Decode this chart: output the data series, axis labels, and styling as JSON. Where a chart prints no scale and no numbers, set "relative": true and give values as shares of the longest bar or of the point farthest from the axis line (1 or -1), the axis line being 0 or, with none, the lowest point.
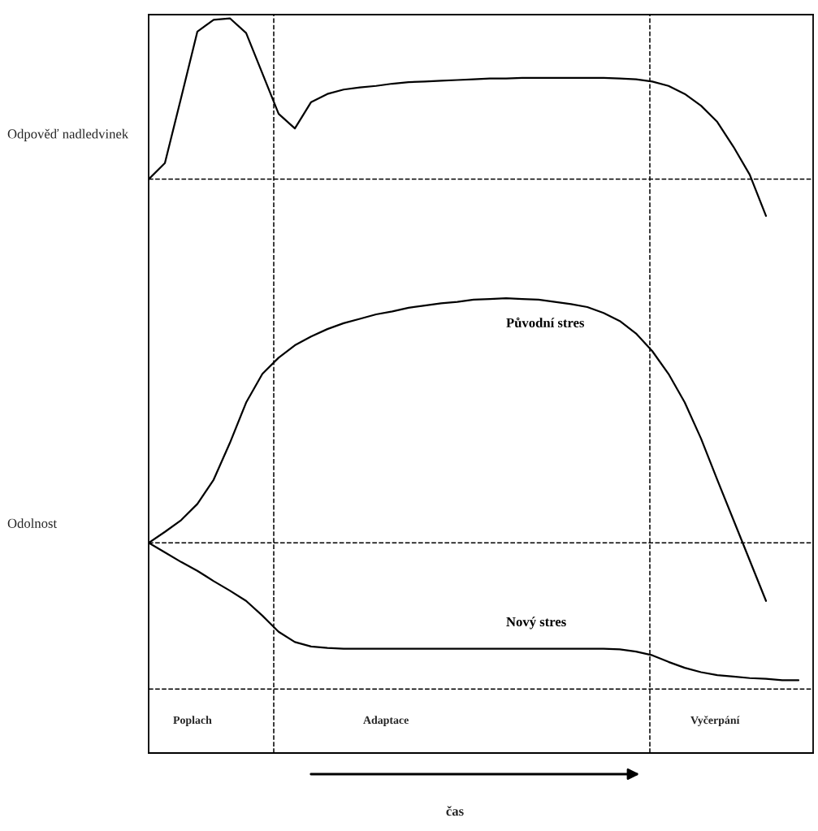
{
  "chart_data": {
    "type": "line",
    "relative": true,
    "xlabel": "čas",
    "categories": [
      null,
      null,
      null,
      null,
      null,
      null,
      null,
      null,
      null,
      null,
      null,
      null,
      null,
      null,
      null,
      null,
      null,
      null,
      null,
      null,
      null,
      null,
      null,
      null,
      null,
      null,
      null,
      null,
      null,
      null,
      null,
      null,
      null,
      null,
      null,
      null,
      null,
      null,
      null,
      null,
      null
    ],
    "series": [
      {
        "color": "#000000",
        "values": [
          0.781,
          0.803,
          0.892,
          0.982,
          0.998,
          1.0,
          0.98,
          0.925,
          0.87,
          0.85,
          0.886,
          0.897,
          0.903,
          0.906,
          0.908,
          0.911,
          0.913,
          0.914,
          0.915,
          0.916,
          0.917,
          0.918,
          0.918,
          0.919,
          0.919,
          0.919,
          0.919,
          0.919,
          0.919,
          0.918,
          0.917,
          0.914,
          0.908,
          0.897,
          0.881,
          0.859,
          0.825,
          0.787,
          0.731,
          null,
          null
        ]
      },
      {
        "name": "Původní stres",
        "color": "#000000",
        "values": [
          0.286,
          0.301,
          0.317,
          0.339,
          0.372,
          0.422,
          0.477,
          0.516,
          0.538,
          0.555,
          0.567,
          0.577,
          0.585,
          0.591,
          0.597,
          0.601,
          0.606,
          0.609,
          0.612,
          0.614,
          0.617,
          0.618,
          0.619,
          0.618,
          0.617,
          0.614,
          0.611,
          0.607,
          0.599,
          0.588,
          0.571,
          0.547,
          0.516,
          0.477,
          0.428,
          0.372,
          0.317,
          0.262,
          0.207,
          null,
          null
        ]
      },
      {
        "name": "Nový stres",
        "color": "#000000",
        "values": [
          0.286,
          0.273,
          0.26,
          0.248,
          0.234,
          0.221,
          0.207,
          0.187,
          0.165,
          0.151,
          0.145,
          0.143,
          0.142,
          0.142,
          0.142,
          0.142,
          0.142,
          0.142,
          0.142,
          0.142,
          0.142,
          0.142,
          0.142,
          0.142,
          0.142,
          0.142,
          0.142,
          0.142,
          0.142,
          0.141,
          0.138,
          0.133,
          0.124,
          0.116,
          0.11,
          0.106,
          0.104,
          0.102,
          0.101,
          0.099,
          0.099
        ]
      }
    ],
    "ref_lines": [
      {
        "axis": "y",
        "value": 0.781,
        "line_style": "dashed",
        "color": "#000000"
      },
      {
        "axis": "y",
        "value": 0.286,
        "line_style": "dashed",
        "color": "#000000"
      },
      {
        "axis": "y",
        "value": 0.087,
        "line_style": "dashed",
        "color": "#000000"
      }
    ],
    "annotations": [
      "Odpověď nadledvinek",
      "Odolnost",
      "Poplach",
      "Adaptace",
      "Vyčerpání"
    ],
    "marker": "none",
    "line_style": "solid"
  }
}
